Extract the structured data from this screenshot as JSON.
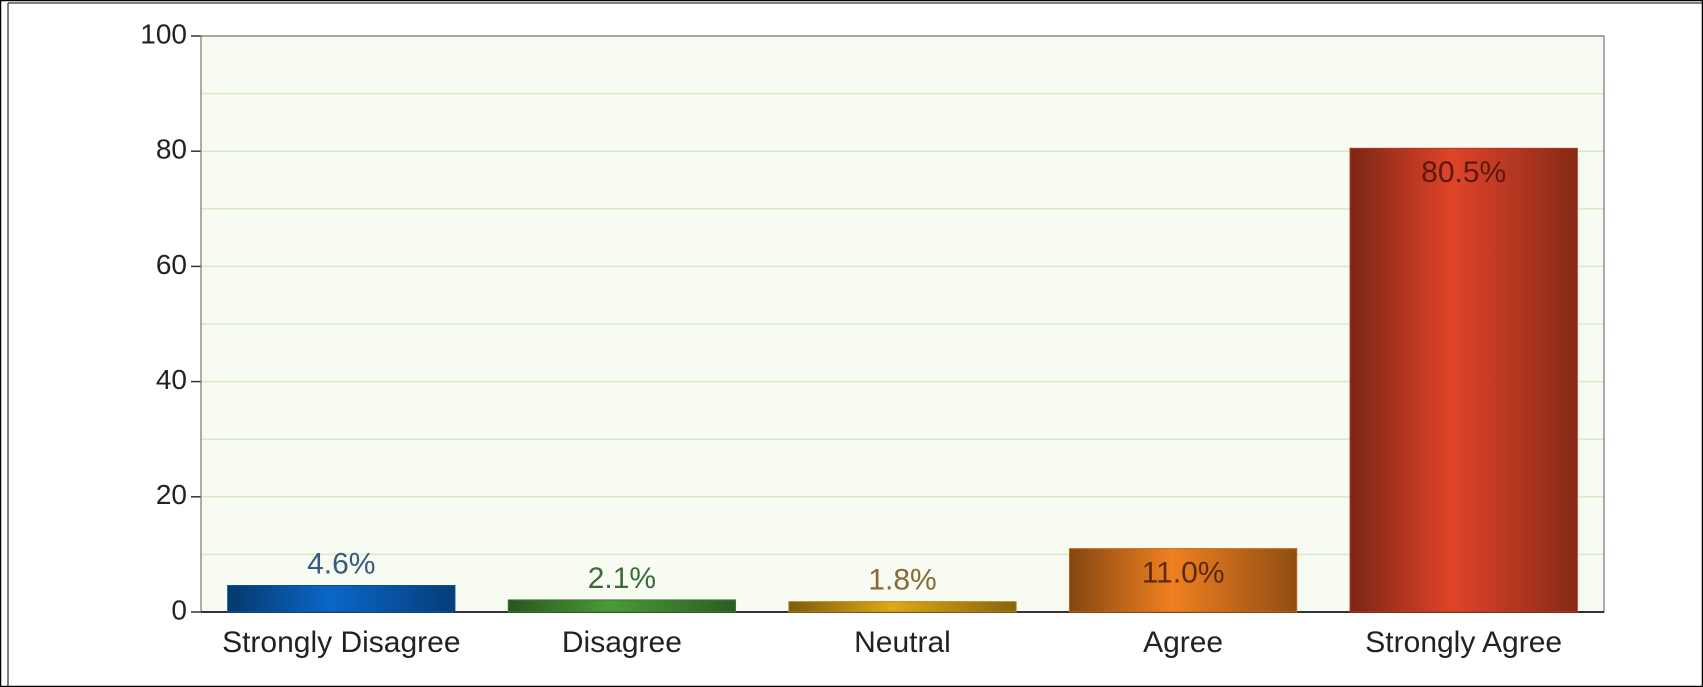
{
  "chart_data": {
    "type": "bar",
    "categories": [
      "Strongly Disagree",
      "Disagree",
      "Neutral",
      "Agree",
      "Strongly Agree"
    ],
    "values": [
      4.6,
      2.1,
      1.8,
      11.0,
      80.5
    ],
    "value_labels": [
      "4.6%",
      "2.1%",
      "1.8%",
      "11.0%",
      "80.5%"
    ],
    "colors": [
      "#0a66c8",
      "#4a9a38",
      "#e0a818",
      "#f08020",
      "#e04428"
    ],
    "label_colors": [
      "#3a5a80",
      "#3d6a3a",
      "#8a6a30",
      "#5a2a10",
      "#5a1a10"
    ],
    "ylim": [
      0,
      100
    ],
    "yticks": [
      0,
      20,
      40,
      60,
      80,
      100
    ],
    "minor_yticks": [
      10,
      30,
      50,
      70,
      90
    ],
    "grid": true
  }
}
